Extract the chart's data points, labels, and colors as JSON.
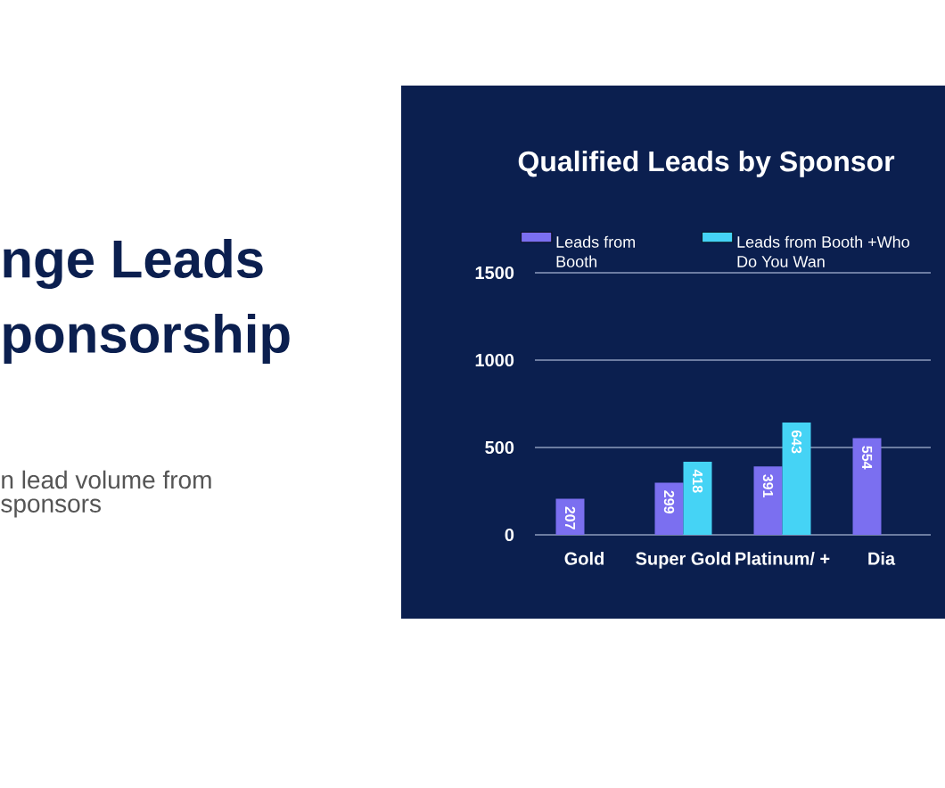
{
  "chart_data": {
    "type": "bar",
    "title": "Qualified Leads by Sponsor",
    "categories": [
      "Gold",
      "Super Gold",
      "Platinum/ +",
      "Dia"
    ],
    "series": [
      {
        "name": "Leads from Booth",
        "color": "#7b6ff0",
        "values": [
          207,
          299,
          391,
          554
        ]
      },
      {
        "name": "Leads from Booth +Who Do You Wan",
        "color": "#45d3f5",
        "values": [
          null,
          418,
          643,
          null
        ]
      }
    ],
    "ylim": [
      0,
      1500
    ],
    "yticks": [
      0,
      500,
      1000,
      1500
    ],
    "grid": "y",
    "legend": "top",
    "data_labels": true,
    "annotations": [
      "nge Leads",
      "ponsorship",
      "n lead volume from",
      "sponsors"
    ]
  }
}
